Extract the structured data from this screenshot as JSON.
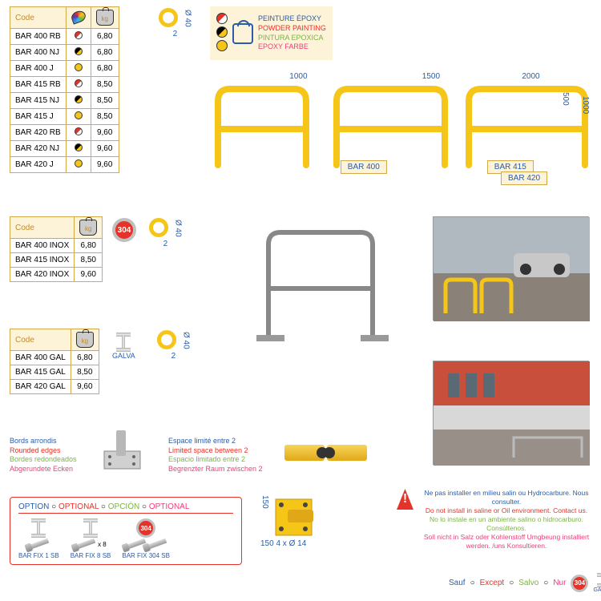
{
  "paint": {
    "fr": "PEINTURE ÉPOXY",
    "en": "POWDER PAINTING",
    "es": "PINTURA EPOXICA",
    "de": "EPOXY FARBE"
  },
  "cols": {
    "code": "Code",
    "kg": "kg"
  },
  "t1": {
    "rows": [
      {
        "code": "BAR 400 RB",
        "kg": "6,80",
        "c": "rw"
      },
      {
        "code": "BAR 400 NJ",
        "kg": "6,80",
        "c": "by"
      },
      {
        "code": "BAR 400 J",
        "kg": "6,80",
        "c": "y"
      },
      {
        "code": "BAR 415 RB",
        "kg": "8,50",
        "c": "rw"
      },
      {
        "code": "BAR 415 NJ",
        "kg": "8,50",
        "c": "by"
      },
      {
        "code": "BAR 415 J",
        "kg": "8,50",
        "c": "y"
      },
      {
        "code": "BAR 420 RB",
        "kg": "9,60",
        "c": "rw"
      },
      {
        "code": "BAR 420 NJ",
        "kg": "9,60",
        "c": "by"
      },
      {
        "code": "BAR 420 J",
        "kg": "9,60",
        "c": "y"
      }
    ]
  },
  "t2": {
    "rows": [
      {
        "code": "BAR 400 INOX",
        "kg": "6,80"
      },
      {
        "code": "BAR 415 INOX",
        "kg": "8,50"
      },
      {
        "code": "BAR 420 INOX",
        "kg": "9,60"
      }
    ]
  },
  "t3": {
    "rows": [
      {
        "code": "BAR 400 GAL",
        "kg": "6,80"
      },
      {
        "code": "BAR 415 GAL",
        "kg": "8,50"
      },
      {
        "code": "BAR 420 GAL",
        "kg": "9,60"
      }
    ]
  },
  "diam": {
    "val": "Ø 40",
    "sub": "2"
  },
  "sizes": {
    "bar400": {
      "w": "1000",
      "label": "BAR 400"
    },
    "bar415": {
      "w": "1500",
      "label": "BAR 415"
    },
    "bar420": {
      "w": "2000",
      "label": "BAR 420",
      "h1": "500",
      "h2": "1000"
    }
  },
  "rounded": {
    "fr": "Bords arrondis",
    "en": "Rounded edges",
    "es": "Bordes redondeados",
    "de": "Abgerundete Ecken"
  },
  "limited": {
    "fr": "Espace limité entre 2",
    "en": "Limited space between 2",
    "es": "Espacio limitado entre 2",
    "de": "Begrenzter Raum zwischen 2"
  },
  "option": {
    "fr": "OPTION",
    "en": "OPTIONAL",
    "es": "OPCIÓN",
    "de": "OPTIONAL"
  },
  "fix": {
    "a": "BAR FIX 1 SB",
    "b": "BAR FIX 8 SB",
    "c": "BAR FIX 304 SB",
    "x8": "x 8"
  },
  "mount": {
    "h": "150",
    "w": "150",
    "holes": "4 x Ø 14"
  },
  "warn": {
    "fr": "Ne pas installer en milieu salin ou Hydrocarbure. Nous consulter.",
    "en": "Do not install in saline or Oil environment. Contact us.",
    "es": "No lo instale en un ambiente salino o hidrocarburo. Consúltenos.",
    "de": "Soll nicht in Salz oder Kohlenstoff Umgbeung installiert werden. /uns Konsultieren."
  },
  "except": {
    "fr": "Sauf",
    "en": "Except",
    "es": "Salvo",
    "de": "Nur"
  },
  "badge": "304",
  "galva": "GALVA"
}
